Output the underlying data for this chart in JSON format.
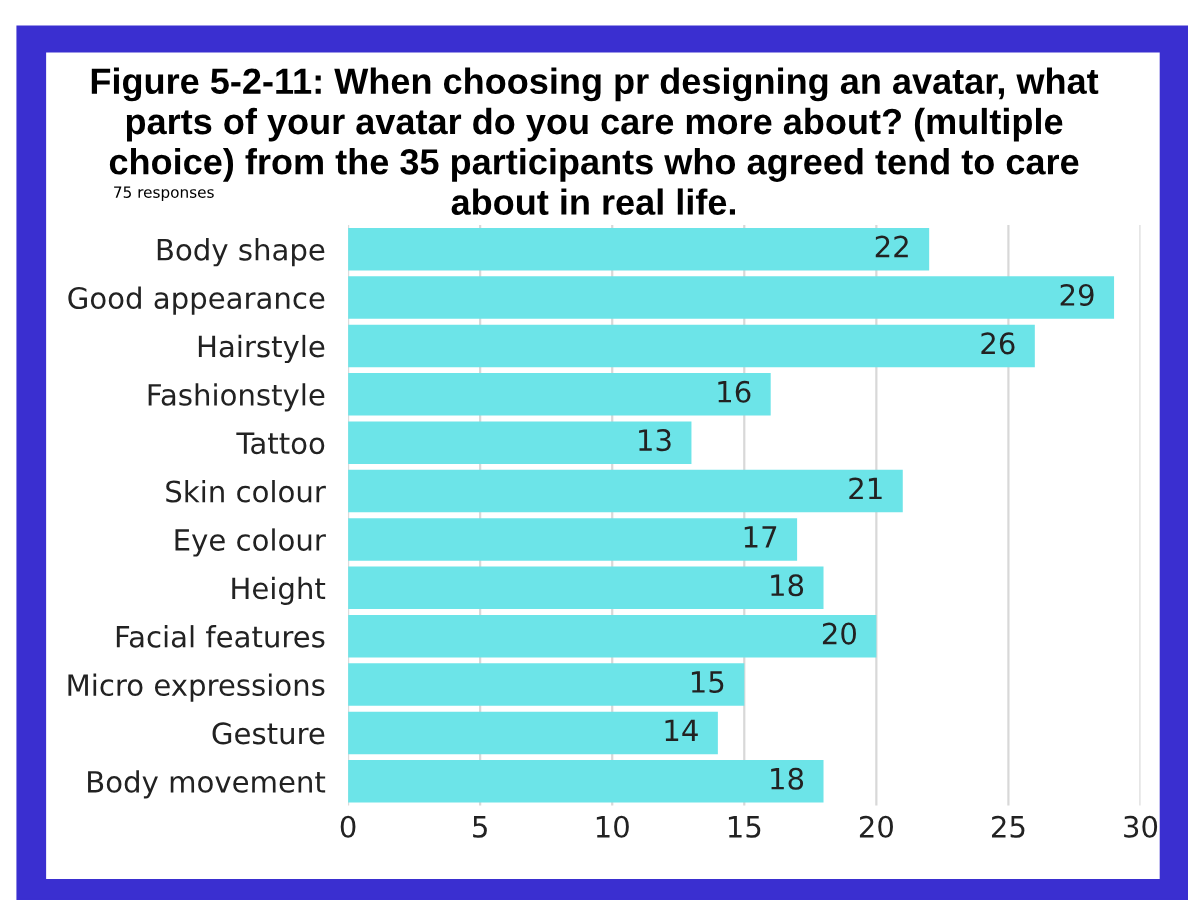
{
  "chart_data": {
    "type": "bar",
    "orientation": "horizontal",
    "title": "Figure 5-2-11: When choosing pr designing an avatar, what parts of your avatar do you care more about? (multiple choice) from the 35 participants who agreed tend to care about in real life.",
    "subtitle": "75 responses",
    "categories": [
      "Body shape",
      "Good appearance",
      "Hairstyle",
      "Fashionstyle",
      "Tattoo",
      "Skin colour",
      "Eye colour",
      "Height",
      "Facial features",
      "Micro expressions",
      "Gesture",
      "Body movement"
    ],
    "values": [
      22,
      29,
      26,
      16,
      13,
      21,
      17,
      18,
      20,
      15,
      14,
      18
    ],
    "color": "#6ce4e8",
    "xlim": [
      0,
      30
    ],
    "xticks": [
      0,
      5,
      10,
      15,
      20,
      25,
      30
    ],
    "grid": "x",
    "data_labels": true
  }
}
